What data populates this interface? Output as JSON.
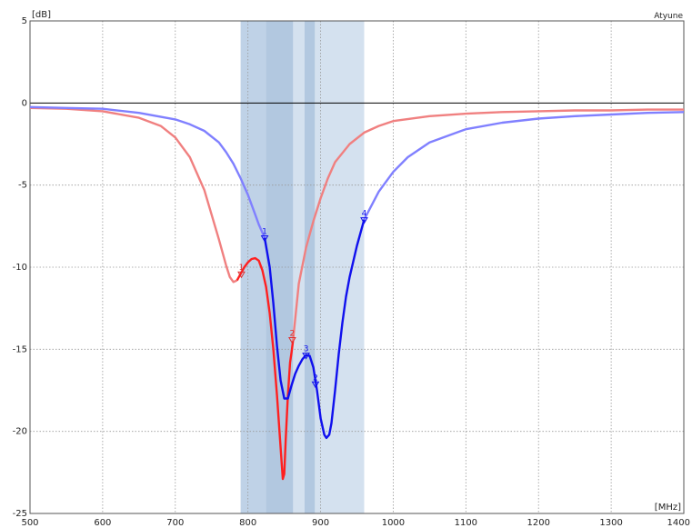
{
  "chart_data": {
    "type": "line",
    "title": "",
    "corner_label": "Atyune",
    "xlabel": "[MHz]",
    "ylabel": "[dB]",
    "xlim": [
      500,
      1400
    ],
    "ylim": [
      -25,
      5
    ],
    "x_ticks": [
      500,
      600,
      700,
      800,
      900,
      1000,
      1100,
      1200,
      1300,
      1400
    ],
    "y_ticks": [
      5,
      0,
      -5,
      -10,
      -15,
      -20,
      -25
    ],
    "grid": true,
    "legend": "none",
    "bands": [
      {
        "x": [
          790,
          960
        ],
        "color": "#d4e1ef"
      },
      {
        "x": [
          790,
          825
        ],
        "color": "#bfd2e7"
      },
      {
        "x": [
          825,
          862
        ],
        "color": "#b2c8e0"
      },
      {
        "x": [
          878,
          892
        ],
        "color": "#b2c8e0"
      }
    ],
    "series": [
      {
        "color": "#f08080",
        "x": [
          500,
          550,
          600,
          650,
          680,
          700,
          720,
          740,
          750,
          760,
          770,
          775,
          780,
          785
        ],
        "values": [
          -0.3,
          -0.35,
          -0.5,
          -0.9,
          -1.4,
          -2.1,
          -3.3,
          -5.3,
          -6.8,
          -8.3,
          -9.9,
          -10.6,
          -10.9,
          -10.8
        ]
      },
      {
        "color": "#ff2020",
        "x": [
          785,
          790,
          795,
          800,
          805,
          810,
          815,
          820,
          825,
          830,
          835,
          840,
          845,
          848,
          850,
          852,
          855,
          858,
          860,
          862
        ],
        "values": [
          -10.8,
          -10.4,
          -10.0,
          -9.7,
          -9.5,
          -9.45,
          -9.6,
          -10.2,
          -11.2,
          -12.8,
          -15.0,
          -17.8,
          -21.0,
          -22.9,
          -22.6,
          -20.5,
          -17.8,
          -15.8,
          -15.2,
          -14.5
        ]
      },
      {
        "color": "#f08080",
        "x": [
          862,
          870,
          880,
          890,
          900,
          910,
          920,
          940,
          960,
          980,
          1000,
          1050,
          1100,
          1150,
          1200,
          1250,
          1300,
          1350,
          1400
        ],
        "values": [
          -14.5,
          -11.0,
          -8.8,
          -7.2,
          -5.8,
          -4.6,
          -3.6,
          -2.5,
          -1.8,
          -1.4,
          -1.1,
          -0.8,
          -0.65,
          -0.55,
          -0.5,
          -0.45,
          -0.45,
          -0.4,
          -0.4
        ]
      },
      {
        "color": "#8080ff",
        "x": [
          500,
          550,
          600,
          650,
          700,
          720,
          740,
          760,
          770,
          780,
          790,
          800,
          810,
          815,
          820,
          823
        ],
        "values": [
          -0.25,
          -0.3,
          -0.35,
          -0.6,
          -1.0,
          -1.3,
          -1.7,
          -2.4,
          -3.0,
          -3.7,
          -4.6,
          -5.6,
          -6.8,
          -7.4,
          -7.9,
          -8.2
        ]
      },
      {
        "color": "#1010ee",
        "x": [
          823,
          830,
          835,
          840,
          845,
          850,
          855,
          860,
          865,
          870,
          875,
          880,
          885,
          890,
          895,
          900,
          905,
          908,
          912,
          915,
          920,
          925,
          930,
          935,
          940,
          950,
          960
        ],
        "values": [
          -8.2,
          -10.0,
          -12.2,
          -14.8,
          -16.9,
          -18.0,
          -18.0,
          -17.2,
          -16.5,
          -16.0,
          -15.6,
          -15.35,
          -15.4,
          -16.1,
          -17.5,
          -19.2,
          -20.2,
          -20.4,
          -20.2,
          -19.5,
          -17.5,
          -15.3,
          -13.4,
          -11.8,
          -10.6,
          -8.7,
          -7.1
        ]
      },
      {
        "color": "#8080ff",
        "x": [
          960,
          980,
          1000,
          1020,
          1050,
          1100,
          1150,
          1200,
          1250,
          1300,
          1350,
          1400
        ],
        "values": [
          -7.1,
          -5.4,
          -4.2,
          -3.3,
          -2.4,
          -1.6,
          -1.2,
          -0.95,
          -0.8,
          -0.7,
          -0.6,
          -0.55
        ]
      }
    ],
    "markers": [
      {
        "label": "1",
        "x": 791,
        "y": -10.4,
        "color": "#e03030"
      },
      {
        "label": "2",
        "x": 861,
        "y": -14.4,
        "color": "#e03030"
      },
      {
        "label": "1",
        "x": 823,
        "y": -8.2,
        "color": "#1010ee"
      },
      {
        "label": "3",
        "x": 880,
        "y": -15.35,
        "color": "#1010ee"
      },
      {
        "label": "2",
        "x": 893,
        "y": -17.1,
        "color": "#1010ee"
      },
      {
        "label": "4",
        "x": 960,
        "y": -7.1,
        "color": "#1010ee"
      }
    ]
  }
}
